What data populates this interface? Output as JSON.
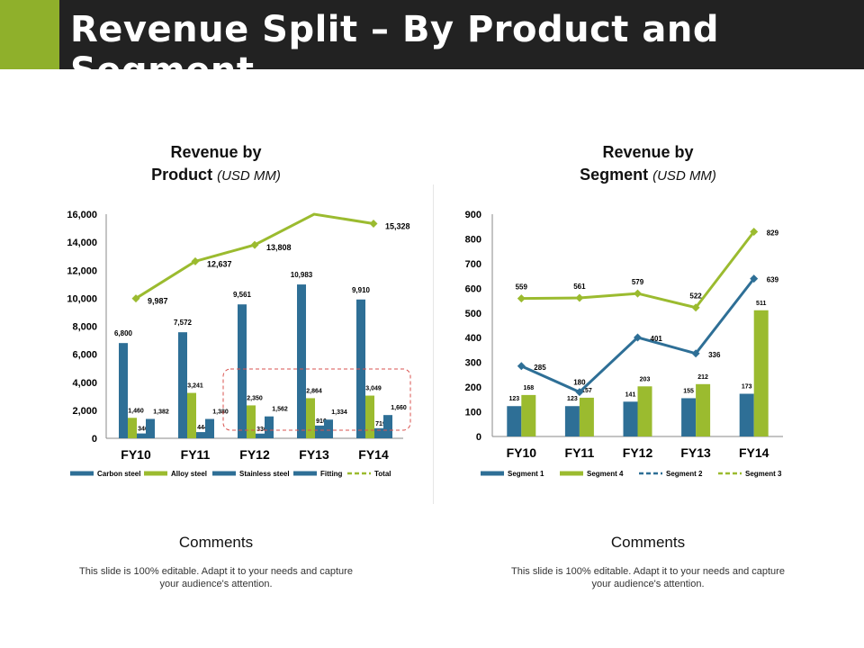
{
  "header": {
    "title": "Revenue Split – By Product and Segment"
  },
  "left": {
    "title_line1": "Revenue by",
    "title_line2": "Product",
    "unit": "(USD MM)",
    "comments_heading": "Comments",
    "comments_text": "This slide is 100% editable. Adapt it to your needs and capture your audience's attention."
  },
  "right": {
    "title_line1": "Revenue by",
    "title_line2": "Segment",
    "unit": "(USD MM)",
    "comments_heading": "Comments",
    "comments_text": "This slide is 100% editable. Adapt it to your needs and capture your audience's attention."
  },
  "colors": {
    "blue": "#2e6f96",
    "green": "#9bbb2f",
    "accent": "#8fb02b",
    "header": "#222222",
    "highlight": "#d9534f"
  },
  "chart_data": [
    {
      "type": "bar",
      "title": "Revenue by Product (USD MM)",
      "categories": [
        "FY10",
        "FY11",
        "FY12",
        "FY13",
        "FY14"
      ],
      "ylim": [
        0,
        16000
      ],
      "yticks": [
        0,
        2000,
        4000,
        6000,
        8000,
        10000,
        12000,
        14000,
        16000
      ],
      "ytick_labels": [
        "0",
        "2,000",
        "4,000",
        "6,000",
        "8,000",
        "10,000",
        "12,000",
        "14,000",
        "16,000"
      ],
      "series": [
        {
          "name": "Carbon steel",
          "kind": "bar",
          "color": "#2e6f96",
          "values": [
            6800,
            7572,
            9561,
            10983,
            9910
          ],
          "labels": [
            "6,800",
            "7,572",
            "9,561",
            "10,983",
            "9,910"
          ]
        },
        {
          "name": "Alloy steel",
          "kind": "bar",
          "color": "#9bbb2f",
          "values": [
            1460,
            3241,
            2350,
            2864,
            3049
          ],
          "labels": [
            "1,460",
            "3,241",
            "2,350",
            "2,864",
            "3,049"
          ]
        },
        {
          "name": "Stainless steel",
          "kind": "bar",
          "color": "#2e6f96",
          "values": [
            346,
            444,
            336,
            910,
            719
          ],
          "labels": [
            "346",
            "444",
            "336",
            "910",
            "719"
          ]
        },
        {
          "name": "Fitting",
          "kind": "bar",
          "color": "#2e6f96",
          "values": [
            1382,
            1380,
            1562,
            1334,
            1660
          ],
          "labels": [
            "1,382",
            "1,380",
            "1,562",
            "1,334",
            "1,660"
          ]
        },
        {
          "name": "Total",
          "kind": "line",
          "color": "#9bbb2f",
          "values": [
            9987,
            12637,
            13808,
            16000,
            15328
          ],
          "labels": [
            "9,987",
            "12,637",
            "13,808",
            "",
            "15,328"
          ]
        }
      ],
      "legend": [
        "Carbon steel",
        "Alloy steel",
        "Stainless steel",
        "Fitting",
        "Total"
      ],
      "annotation": "dashed highlight box around FY12–FY14 small bars"
    },
    {
      "type": "bar",
      "title": "Revenue by Segment (USD MM)",
      "categories": [
        "FY10",
        "FY11",
        "FY12",
        "FY13",
        "FY14"
      ],
      "ylim": [
        0,
        900
      ],
      "yticks": [
        0,
        100,
        200,
        300,
        400,
        500,
        600,
        700,
        800,
        900
      ],
      "ytick_labels": [
        "0",
        "100",
        "200",
        "300",
        "400",
        "500",
        "600",
        "700",
        "800",
        "900"
      ],
      "series": [
        {
          "name": "Segment 1",
          "kind": "bar",
          "color": "#2e6f96",
          "values": [
            123,
            123,
            141,
            155,
            173
          ],
          "labels": [
            "123",
            "123",
            "141",
            "155",
            "173"
          ]
        },
        {
          "name": "Segment 4",
          "kind": "bar",
          "color": "#9bbb2f",
          "values": [
            168,
            157,
            203,
            212,
            511
          ],
          "labels": [
            "168",
            "157",
            "203",
            "212",
            "511"
          ]
        },
        {
          "name": "Segment 2",
          "kind": "line",
          "color": "#2e6f96",
          "values": [
            285,
            180,
            401,
            336,
            639
          ],
          "labels": [
            "285",
            "180",
            "401",
            "336",
            "639"
          ]
        },
        {
          "name": "Segment 3",
          "kind": "line",
          "color": "#9bbb2f",
          "values": [
            559,
            561,
            579,
            522,
            829
          ],
          "labels": [
            "559",
            "561",
            "579",
            "522",
            "829"
          ]
        }
      ],
      "legend": [
        "Segment 1",
        "Segment 4",
        "Segment 2",
        "Segment 3"
      ]
    }
  ]
}
